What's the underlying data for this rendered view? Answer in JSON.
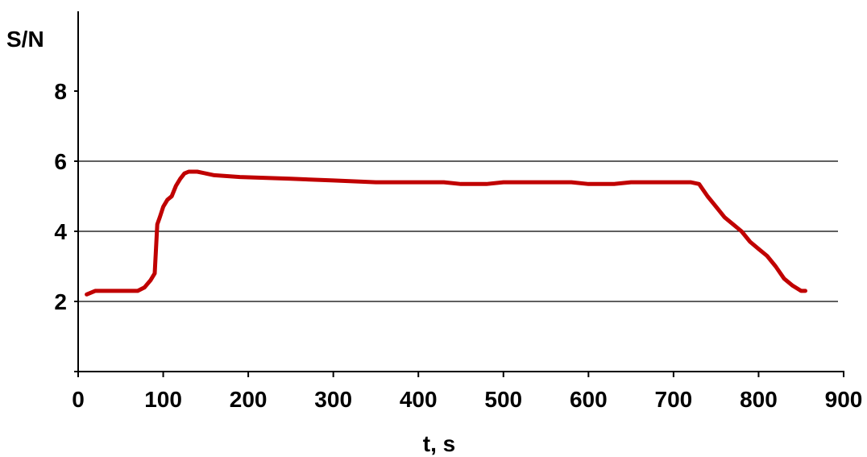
{
  "chart_data": {
    "type": "line",
    "title": "",
    "xlabel": "t, s",
    "ylabel": "S/N",
    "xlim": [
      0,
      900
    ],
    "ylim": [
      0,
      10
    ],
    "x_ticks": [
      0,
      100,
      200,
      300,
      400,
      500,
      600,
      700,
      800,
      900
    ],
    "y_ticks_labeled": [
      2,
      4,
      6,
      8
    ],
    "y_gridlines": [
      2,
      4,
      6
    ],
    "grid": "horizontal lines at 2, 4, 6",
    "legend": "none",
    "series": [
      {
        "color": "#c00000",
        "x": [
          10,
          20,
          30,
          50,
          70,
          78,
          85,
          90,
          93,
          96,
          100,
          105,
          110,
          115,
          120,
          125,
          130,
          140,
          160,
          190,
          250,
          300,
          350,
          430,
          450,
          480,
          500,
          580,
          600,
          630,
          650,
          720,
          730,
          740,
          750,
          760,
          770,
          780,
          790,
          800,
          810,
          820,
          830,
          840,
          850,
          855
        ],
        "y": [
          2.2,
          2.3,
          2.3,
          2.3,
          2.3,
          2.4,
          2.6,
          2.8,
          4.2,
          4.4,
          4.7,
          4.9,
          5.0,
          5.3,
          5.5,
          5.65,
          5.7,
          5.7,
          5.6,
          5.55,
          5.5,
          5.45,
          5.4,
          5.4,
          5.35,
          5.35,
          5.4,
          5.4,
          5.35,
          5.35,
          5.4,
          5.4,
          5.35,
          5.0,
          4.7,
          4.4,
          4.2,
          4.0,
          3.7,
          3.5,
          3.3,
          3.0,
          2.65,
          2.45,
          2.3,
          2.3
        ]
      }
    ]
  }
}
